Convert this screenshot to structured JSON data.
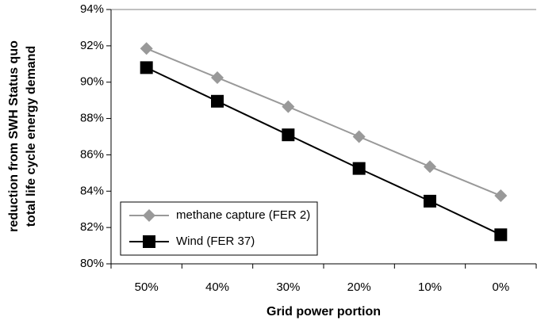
{
  "chart_data": {
    "type": "line",
    "categories": [
      "50%",
      "40%",
      "30%",
      "20%",
      "10%",
      "0%"
    ],
    "series": [
      {
        "name": "methane capture (FER 2)",
        "color": "#999999",
        "marker": "diamond",
        "values": [
          91.85,
          90.25,
          88.65,
          87.0,
          85.35,
          83.75
        ]
      },
      {
        "name": "Wind (FER 37)",
        "color": "#000000",
        "marker": "square",
        "values": [
          90.8,
          88.95,
          87.1,
          85.25,
          83.45,
          81.6
        ]
      }
    ],
    "ylim": [
      80,
      94
    ],
    "yticks": [
      {
        "value": 80,
        "label": "80%"
      },
      {
        "value": 82,
        "label": "82%"
      },
      {
        "value": 84,
        "label": "84%"
      },
      {
        "value": 86,
        "label": "86%"
      },
      {
        "value": 88,
        "label": "88%"
      },
      {
        "value": 90,
        "label": "90%"
      },
      {
        "value": 92,
        "label": "92%"
      },
      {
        "value": 94,
        "label": "94%"
      }
    ],
    "x_label": "Grid power portion",
    "y_label": [
      "reduction from SWH Status quo",
      "total life cycle energy demand"
    ],
    "grid": false,
    "legend": "lower left"
  }
}
